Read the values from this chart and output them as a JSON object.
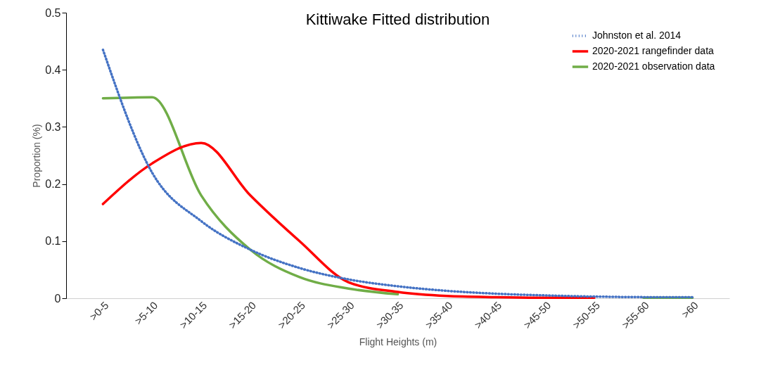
{
  "chart_data": {
    "type": "line",
    "title": "Kittiwake Fitted distribution",
    "xlabel": "Flight Heights (m)",
    "ylabel": "Proportion (%)",
    "categories": [
      ">0-5",
      ">5-10",
      ">10-15",
      ">15-20",
      ">20-25",
      ">25-30",
      ">30-35",
      ">35-40",
      ">40-45",
      ">45-50",
      ">50-55",
      ">55-60",
      ">60"
    ],
    "series": [
      {
        "name": "Johnston et al. 2014",
        "color": "#4472c4",
        "line_style": "dotted",
        "values": [
          0.435,
          0.22,
          0.135,
          0.085,
          0.053,
          0.033,
          0.021,
          0.013,
          0.008,
          0.005,
          0.003,
          0.002,
          0.002
        ]
      },
      {
        "name": "2020-2021 rangefinder data",
        "color": "#ff0000",
        "line_style": "solid",
        "values": [
          0.165,
          0.236,
          0.272,
          0.18,
          0.1,
          0.028,
          0.011,
          0.004,
          0.002,
          0.001,
          0.001,
          null,
          null
        ]
      },
      {
        "name": "2020-2021 observation data",
        "color": "#70ad47",
        "line_style": "solid",
        "values": [
          0.35,
          0.352,
          0.18,
          0.085,
          0.037,
          0.017,
          0.007,
          null,
          null,
          null,
          null,
          0.001,
          0.001
        ]
      }
    ],
    "ylim": [
      0,
      0.5
    ],
    "yticks": [
      {
        "value": 0,
        "label": "0"
      },
      0.1,
      0.2,
      0.3,
      0.4,
      0.5
    ],
    "grid": false,
    "legend": "top right",
    "marker": "none"
  }
}
